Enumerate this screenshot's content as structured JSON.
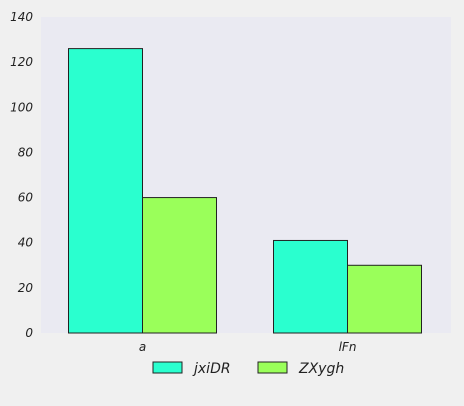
{
  "chart_data": {
    "type": "bar",
    "title": "",
    "xlabel": "",
    "ylabel": "",
    "categories": [
      "a",
      "lFn"
    ],
    "series": [
      {
        "name": "jxiDR",
        "values": [
          126,
          41
        ],
        "color": "#2affcf"
      },
      {
        "name": "ZXygh",
        "values": [
          60,
          30
        ],
        "color": "#9aff5a"
      }
    ],
    "ylim": [
      0,
      140
    ],
    "yticks": [
      0,
      20,
      40,
      60,
      80,
      100,
      120,
      140
    ],
    "grid": false,
    "legend_position": "bottom-center",
    "plot_background": "#eaeaf2",
    "bar_edge_color": "#222222"
  }
}
